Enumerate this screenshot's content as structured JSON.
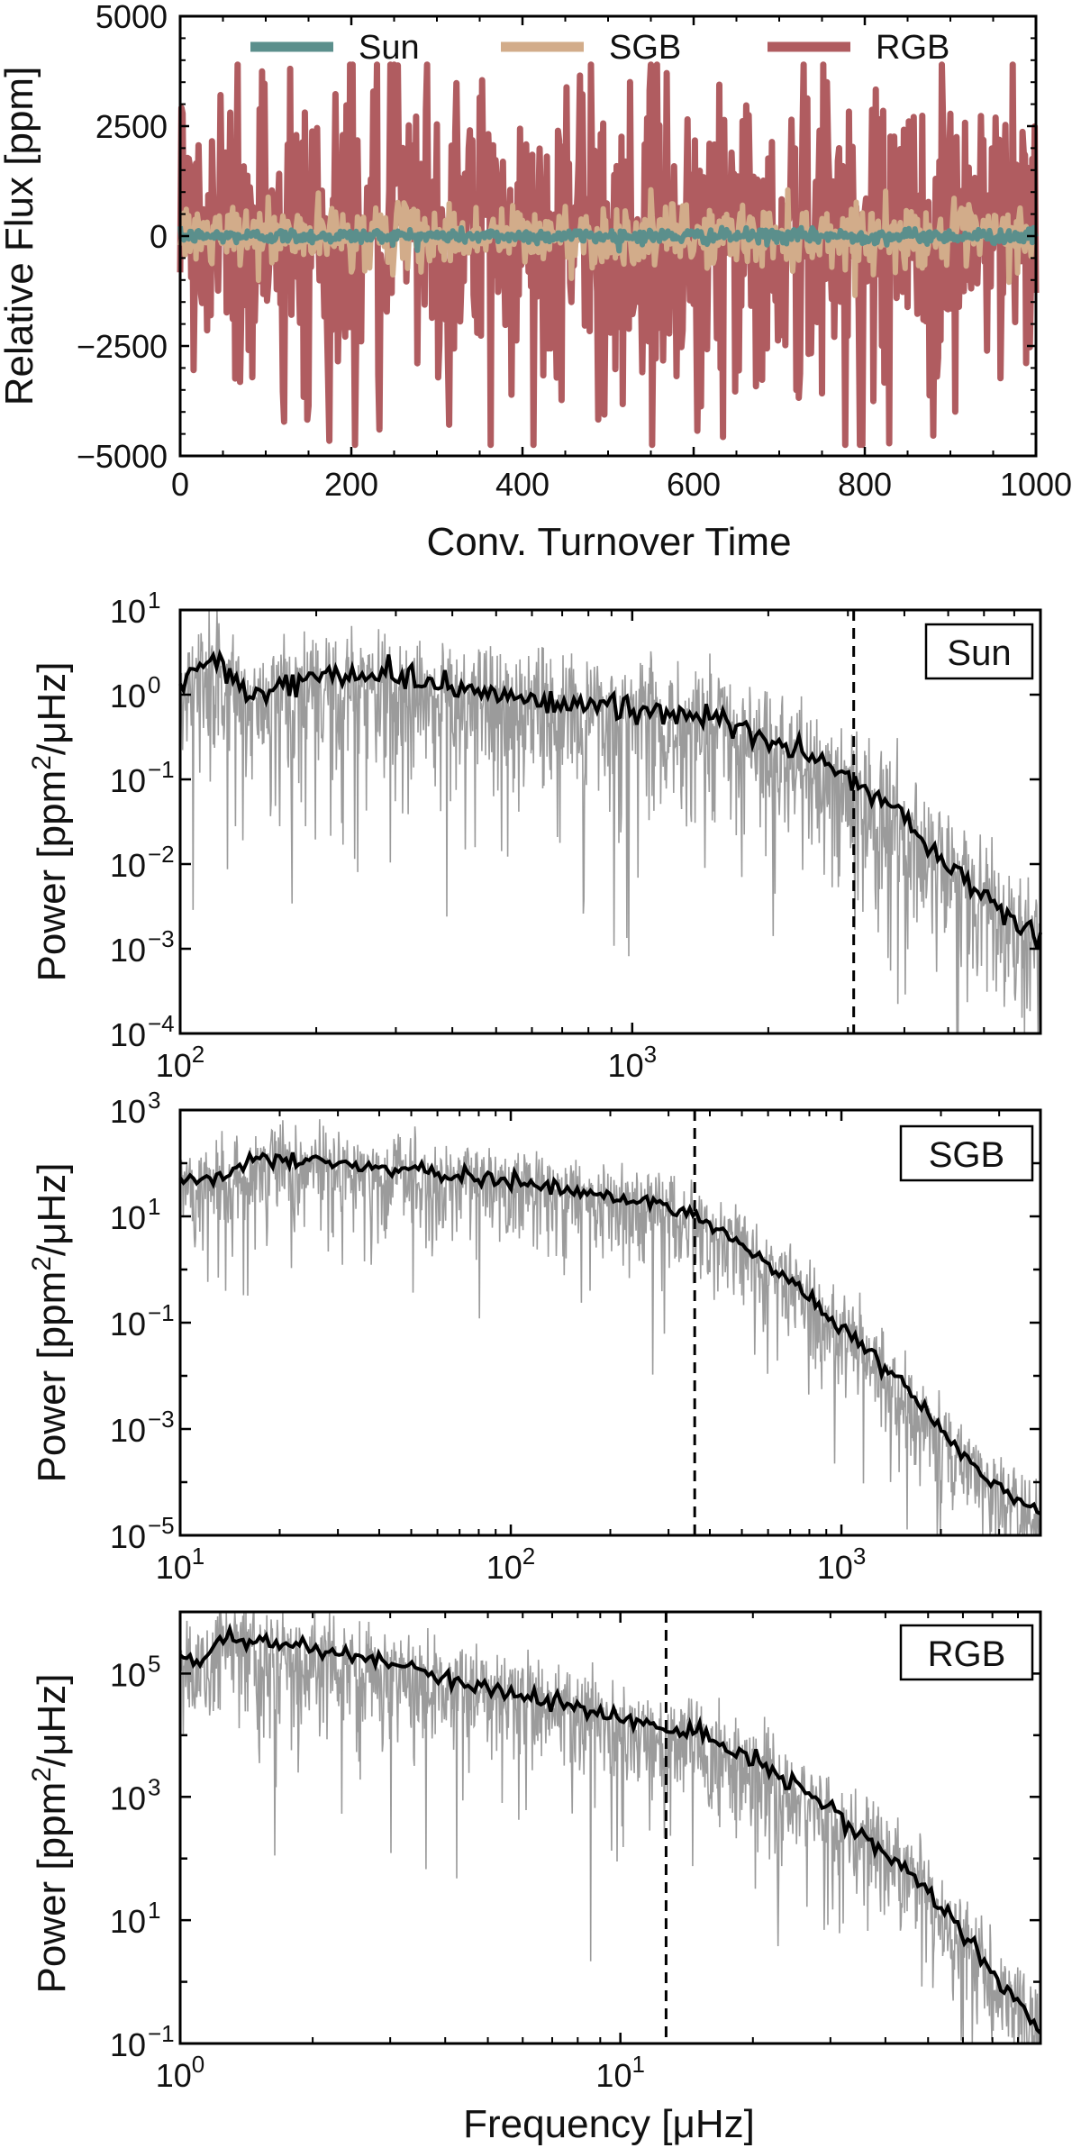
{
  "chart_data": [
    {
      "type": "line",
      "panel": "time-series",
      "xlabel": "Conv. Turnover Time",
      "ylabel": "Relative Flux [ppm]",
      "xlim": [
        0,
        1000
      ],
      "ylim": [
        -5000,
        5000
      ],
      "xticks": [
        0,
        200,
        400,
        600,
        800,
        1000
      ],
      "xtick_labels": [
        "0",
        "200",
        "400",
        "600",
        "800",
        "1000"
      ],
      "yticks": [
        -5000,
        -2500,
        0,
        2500,
        5000
      ],
      "ytick_labels": [
        "−5000",
        "−2500",
        "0",
        "2500",
        "5000"
      ],
      "legend_position": "top",
      "series": [
        {
          "name": "Sun",
          "color": "#5b8f8c",
          "amplitude_ppm": 80,
          "description": "near zero"
        },
        {
          "name": "SGB",
          "color": "#d2ac8a",
          "amplitude_ppm": 350
        },
        {
          "name": "RGB",
          "color": "#b05c60",
          "amplitude_ppm": 2000,
          "max_ppm": 3900,
          "min_ppm": -4750
        }
      ]
    },
    {
      "type": "line",
      "panel": "power-spectrum",
      "scale": "log-log",
      "label": "Sun",
      "ylabel_main": "Power [ppm",
      "ylabel_sup": "2",
      "ylabel_tail": "/μHz]",
      "xlim": [
        100,
        8000
      ],
      "ylim": [
        0.0001,
        10
      ],
      "xtick_major": [
        100,
        1000
      ],
      "xtick_labels": [
        {
          "base": "10",
          "exp": "2"
        },
        {
          "base": "10",
          "exp": "3"
        }
      ],
      "ytick_major": [
        -4,
        -3,
        -2,
        -1,
        0,
        1
      ],
      "ytick_labels": [
        {
          "base": "10",
          "exp": "−4"
        },
        {
          "base": "10",
          "exp": "−3"
        },
        {
          "base": "10",
          "exp": "−2"
        },
        {
          "base": "10",
          "exp": "−1"
        },
        {
          "base": "10",
          "exp": "0"
        },
        {
          "base": "10",
          "exp": "1"
        }
      ],
      "cutoff_frequency": 3090,
      "smooth_points": [
        [
          100,
          1.3
        ],
        [
          120,
          3.0
        ],
        [
          140,
          0.9
        ],
        [
          200,
          1.7
        ],
        [
          300,
          1.6
        ],
        [
          500,
          1.0
        ],
        [
          800,
          0.75
        ],
        [
          1000,
          0.65
        ],
        [
          1500,
          0.55
        ],
        [
          2000,
          0.3
        ],
        [
          2500,
          0.18
        ],
        [
          3000,
          0.1
        ],
        [
          4000,
          0.035
        ],
        [
          5000,
          0.01
        ],
        [
          6000,
          0.004
        ],
        [
          7000,
          0.0022
        ],
        [
          8000,
          0.0013
        ]
      ]
    },
    {
      "type": "line",
      "panel": "power-spectrum",
      "scale": "log-log",
      "label": "SGB",
      "ylabel_main": "Power [ppm",
      "ylabel_sup": "2",
      "ylabel_tail": "/μHz]",
      "xlim": [
        10,
        4000
      ],
      "ylim": [
        1e-05,
        1000
      ],
      "xtick_major": [
        10,
        100,
        1000
      ],
      "xtick_labels": [
        {
          "base": "10",
          "exp": "1"
        },
        {
          "base": "10",
          "exp": "2"
        },
        {
          "base": "10",
          "exp": "3"
        }
      ],
      "ytick_major": [
        -5,
        -3,
        -1,
        1,
        3
      ],
      "ytick_labels": [
        {
          "base": "10",
          "exp": "−5"
        },
        {
          "base": "10",
          "exp": "−3"
        },
        {
          "base": "10",
          "exp": "−1"
        },
        {
          "base": "10",
          "exp": "1"
        },
        {
          "base": "10",
          "exp": "3"
        }
      ],
      "cutoff_frequency": 360,
      "smooth_points": [
        [
          10,
          55
        ],
        [
          13,
          55
        ],
        [
          18,
          130
        ],
        [
          30,
          100
        ],
        [
          50,
          70
        ],
        [
          100,
          45
        ],
        [
          200,
          25
        ],
        [
          300,
          15
        ],
        [
          400,
          8
        ],
        [
          500,
          3
        ],
        [
          700,
          0.6
        ],
        [
          1000,
          0.08
        ],
        [
          1500,
          0.008
        ],
        [
          2000,
          0.001
        ],
        [
          3000,
          8e-05
        ],
        [
          4000,
          2.5e-05
        ]
      ]
    },
    {
      "type": "line",
      "panel": "power-spectrum",
      "scale": "log-log",
      "label": "RGB",
      "xlabel": "Frequency [μHz]",
      "ylabel_main": "Power [ppm",
      "ylabel_sup": "2",
      "ylabel_tail": "/μHz]",
      "xlim": [
        1,
        90
      ],
      "ylim": [
        0.1,
        1000000
      ],
      "xtick_major": [
        1,
        10
      ],
      "xtick_labels": [
        {
          "base": "10",
          "exp": "0"
        },
        {
          "base": "10",
          "exp": "1"
        }
      ],
      "ytick_major": [
        -1,
        1,
        3,
        5
      ],
      "ytick_labels": [
        {
          "base": "10",
          "exp": "−1"
        },
        {
          "base": "10",
          "exp": "1"
        },
        {
          "base": "10",
          "exp": "3"
        },
        {
          "base": "10",
          "exp": "5"
        }
      ],
      "cutoff_frequency": 12.7,
      "smooth_points": [
        [
          1,
          200000
        ],
        [
          1.1,
          130000
        ],
        [
          1.25,
          400000
        ],
        [
          1.6,
          300000
        ],
        [
          2,
          250000
        ],
        [
          3,
          150000
        ],
        [
          4,
          80000
        ],
        [
          6,
          45000
        ],
        [
          10,
          20000
        ],
        [
          12.7,
          12000
        ],
        [
          15,
          10000
        ],
        [
          20,
          4000
        ],
        [
          30,
          600
        ],
        [
          40,
          120
        ],
        [
          50,
          30
        ],
        [
          60,
          6
        ],
        [
          70,
          1.5
        ],
        [
          80,
          0.5
        ],
        [
          90,
          0.15
        ]
      ]
    }
  ]
}
